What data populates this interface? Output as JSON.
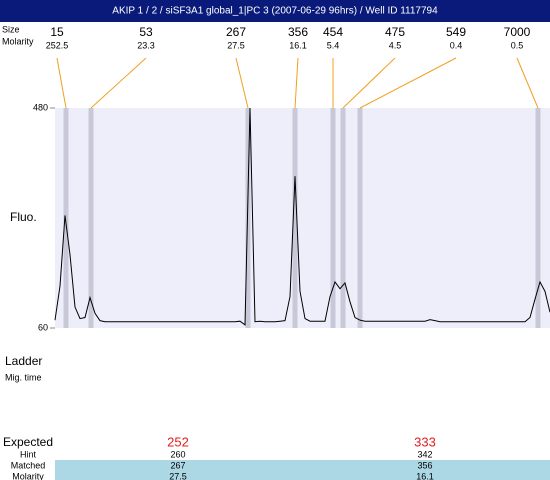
{
  "header": {
    "title": "AKIP 1 / 2 / siSF3A1 global_1|PC 3 (2007-06-29 96hrs) / Well ID 1117794"
  },
  "chart_data": {
    "type": "line",
    "ylabel": "Fluo.",
    "ylim": [
      60,
      480
    ],
    "yticks": [
      60,
      480
    ],
    "color": "#000000",
    "categories": [
      null,
      null,
      null,
      null,
      null,
      null,
      null,
      null,
      null,
      null,
      null,
      null,
      null,
      null,
      null,
      null,
      null,
      null,
      null,
      null,
      null,
      null,
      null,
      null,
      null,
      null,
      null,
      null,
      null,
      null,
      null,
      null,
      null,
      null,
      null,
      null,
      null,
      null,
      null,
      null,
      null,
      null,
      null,
      null,
      null,
      null,
      null,
      null,
      null,
      null,
      null,
      null,
      null,
      null,
      null,
      null,
      null,
      null,
      null,
      null,
      null,
      null,
      null,
      null,
      null,
      null,
      null,
      null,
      null,
      null,
      null,
      null,
      null,
      null,
      null,
      null,
      null,
      null,
      null,
      null,
      null,
      null,
      null,
      null,
      null,
      null,
      null,
      null,
      null,
      null,
      null,
      null,
      null,
      null,
      null,
      null,
      null,
      null,
      null,
      null
    ],
    "values": [
      75,
      140,
      275,
      200,
      100,
      78,
      80,
      118,
      88,
      74,
      72,
      72,
      72,
      72,
      72,
      72,
      72,
      72,
      72,
      72,
      72,
      72,
      72,
      72,
      72,
      72,
      72,
      72,
      72,
      72,
      72,
      72,
      72,
      72,
      72,
      72,
      72,
      73,
      66,
      480,
      72,
      73,
      72,
      72,
      72,
      73,
      74,
      120,
      350,
      130,
      78,
      73,
      73,
      73,
      73,
      120,
      148,
      135,
      146,
      110,
      80,
      75,
      73,
      73,
      73,
      73,
      73,
      73,
      73,
      73,
      73,
      73,
      73,
      73,
      73,
      76,
      74,
      72,
      72,
      72,
      72,
      72,
      72,
      72,
      72,
      72,
      72,
      72,
      72,
      72,
      72,
      72,
      72,
      72,
      72,
      80,
      115,
      148,
      130,
      90
    ],
    "peaks": {
      "size_label": "Size",
      "molarity_label": "Molarity",
      "sizes": [
        15,
        53,
        267,
        356,
        454,
        475,
        549,
        7000
      ],
      "molarities": [
        252.5,
        23.3,
        27.5,
        16.1,
        5.4,
        4.5,
        0.4,
        0.5
      ]
    }
  },
  "ladder": {
    "label": "Ladder",
    "sublabel": "Mig. time"
  },
  "table": {
    "row_labels": [
      "Expected",
      "Hint",
      "Matched",
      "Molarity"
    ],
    "columns": [
      [
        252,
        260,
        267,
        27.5
      ],
      [
        333,
        342,
        356,
        16.1
      ]
    ]
  }
}
